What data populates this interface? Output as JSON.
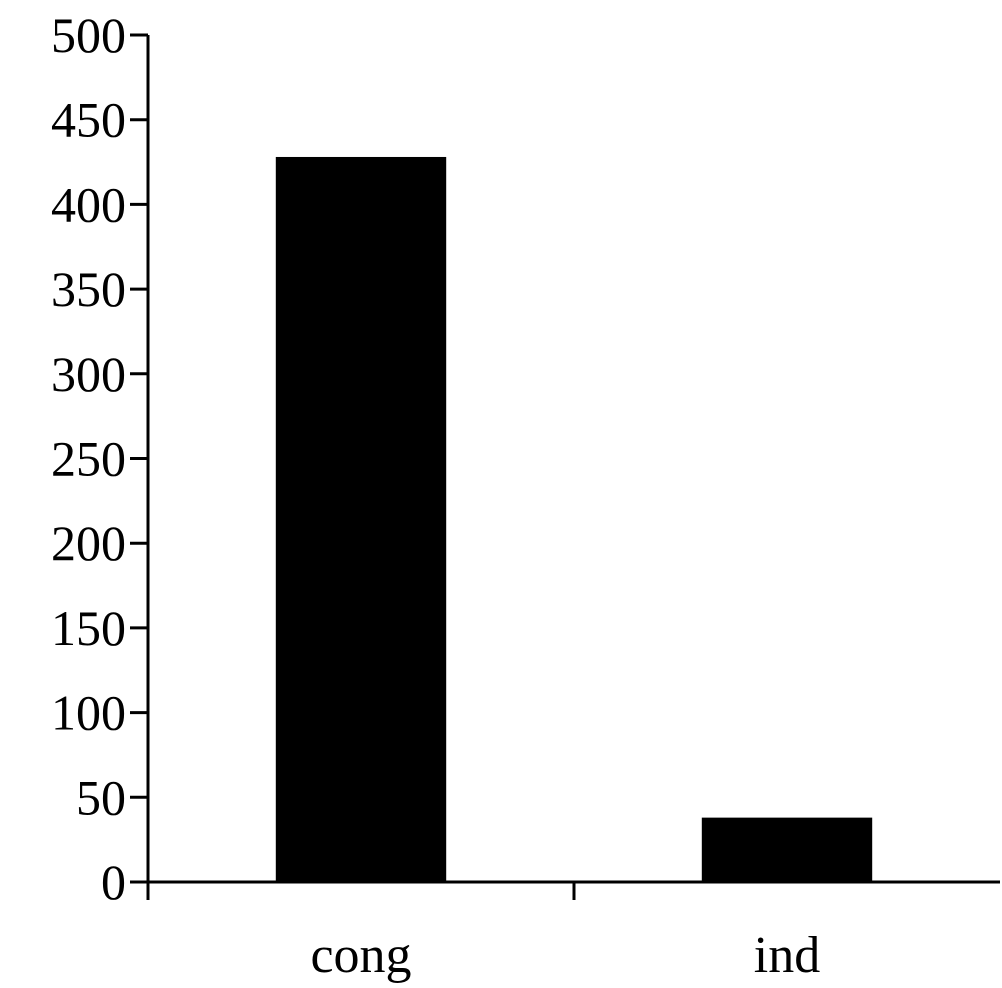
{
  "chart_data": {
    "type": "bar",
    "categories": [
      "cong",
      "ind"
    ],
    "values": [
      428,
      38
    ],
    "title": "",
    "xlabel": "",
    "ylabel": "",
    "ylim": [
      0,
      500
    ],
    "yticks": [
      0,
      50,
      100,
      150,
      200,
      250,
      300,
      350,
      400,
      450,
      500
    ],
    "grid": false,
    "legend": "none",
    "bar_color": "#000000",
    "axis_color": "#000000"
  }
}
